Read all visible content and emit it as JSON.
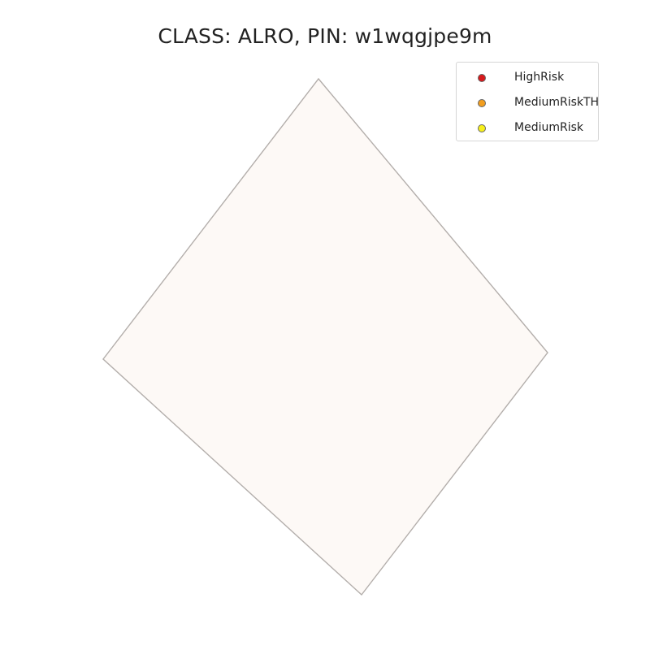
{
  "map": {
    "title": "CLASS: ALRO, PIN: w1wqgjpe9m",
    "parcel": {
      "fill": "#fdf9f6",
      "stroke": "#b3aeab"
    },
    "legend": {
      "placement": "top-right",
      "items": [
        {
          "label": "HighRisk",
          "color": "#d7191c"
        },
        {
          "label": "MediumRiskTH",
          "color": "#f29e1f"
        },
        {
          "label": "MediumRisk",
          "color": "#f7f01b"
        }
      ]
    }
  }
}
